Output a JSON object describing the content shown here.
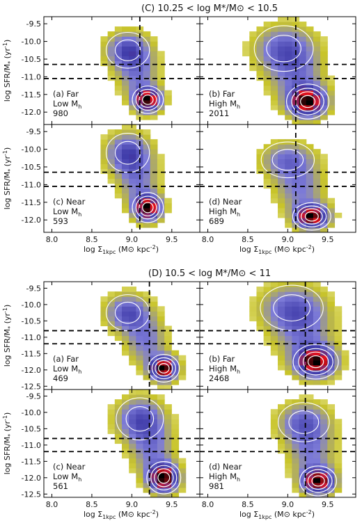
{
  "figure": {
    "sections": [
      {
        "id": "C",
        "title": "(C) 10.25 < log M*/M⊙ < 10.5"
      },
      {
        "id": "D",
        "title": "(D) 10.5 < log M*/M⊙ < 11"
      }
    ],
    "xlabel_main": "log Σ",
    "xlabel_sub": "1kpc",
    "xlabel_rest": " (M⊙ kpc",
    "xlabel_exp": "-2",
    "xlabel_close": ")",
    "ylabel_main": "log SFR/M",
    "ylabel_sub": "*",
    "ylabel_rest": " (yr",
    "ylabel_exp": "-1",
    "ylabel_close": ")"
  },
  "chart_data": [
    {
      "type": "heatmap",
      "section": "C",
      "xlim": [
        7.9,
        9.85
      ],
      "ylim": [
        -12.35,
        -9.3
      ],
      "xticks": [
        "8.0",
        "8.5",
        "9.0",
        "9.5"
      ],
      "yticks": [
        "-9.5",
        "-10.0",
        "-10.5",
        "-11.0",
        "-11.5",
        "-12.0"
      ],
      "vline_x": 9.1,
      "hlines_y": [
        -10.65,
        -11.05
      ],
      "colormap": [
        "#f3f1c2",
        "#c8c42a",
        "#7d7bd8",
        "#3e3aa8",
        "#e0101c",
        "#000000"
      ],
      "panels": [
        {
          "label": [
            "(a) Far",
            "Low M",
            "980"
          ],
          "sub": "h",
          "peak": [
            9.2,
            -11.65
          ],
          "upper": [
            8.95,
            -10.25
          ],
          "spread": [
            0.22,
            0.55
          ],
          "upper_weight": 0.55
        },
        {
          "label": [
            "(b) Far",
            "High M",
            "2011"
          ],
          "sub": "h",
          "peak": [
            9.25,
            -11.7
          ],
          "upper": [
            8.95,
            -10.2
          ],
          "spread": [
            0.3,
            0.7
          ],
          "upper_weight": 0.45
        },
        {
          "label": [
            "(c) Near",
            "Low M",
            "593"
          ],
          "sub": "h",
          "peak": [
            9.2,
            -11.65
          ],
          "upper": [
            8.95,
            -10.1
          ],
          "spread": [
            0.22,
            0.6
          ],
          "upper_weight": 0.55
        },
        {
          "label": [
            "(d) Near",
            "High M",
            "689"
          ],
          "sub": "h",
          "peak": [
            9.3,
            -11.9
          ],
          "upper": [
            9.0,
            -10.3
          ],
          "spread": [
            0.27,
            0.55
          ],
          "upper_weight": 0.4
        }
      ]
    },
    {
      "type": "heatmap",
      "section": "D",
      "xlim": [
        7.9,
        9.85
      ],
      "ylim": [
        -12.6,
        -9.3
      ],
      "xticks": [
        "8.0",
        "8.5",
        "9.0",
        "9.5"
      ],
      "yticks": [
        "-9.5",
        "-10.0",
        "-10.5",
        "-11.0",
        "-11.5",
        "-12.0",
        "-12.5"
      ],
      "vline_x": 9.22,
      "hlines_y": [
        -10.8,
        -11.2
      ],
      "colormap": [
        "#f3f1c2",
        "#c8c42a",
        "#7d7bd8",
        "#3e3aa8",
        "#e0101c",
        "#000000"
      ],
      "panels": [
        {
          "label": [
            "(a) Far",
            "Low M",
            "469"
          ],
          "sub": "h",
          "peak": [
            9.4,
            -11.95
          ],
          "upper": [
            8.95,
            -10.25
          ],
          "spread": [
            0.22,
            0.6
          ],
          "upper_weight": 0.5
        },
        {
          "label": [
            "(b) Far",
            "High M",
            "2468"
          ],
          "sub": "h",
          "peak": [
            9.35,
            -11.75
          ],
          "upper": [
            9.05,
            -10.1
          ],
          "spread": [
            0.32,
            0.75
          ],
          "upper_weight": 0.45
        },
        {
          "label": [
            "(c) Near",
            "Low M",
            "561"
          ],
          "sub": "h",
          "peak": [
            9.4,
            -12.0
          ],
          "upper": [
            9.1,
            -10.2
          ],
          "spread": [
            0.24,
            0.7
          ],
          "upper_weight": 0.5
        },
        {
          "label": [
            "(d) Near",
            "High M",
            "981"
          ],
          "sub": "h",
          "peak": [
            9.38,
            -12.1
          ],
          "upper": [
            9.2,
            -10.3
          ],
          "spread": [
            0.26,
            0.65
          ],
          "upper_weight": 0.45
        }
      ]
    }
  ]
}
